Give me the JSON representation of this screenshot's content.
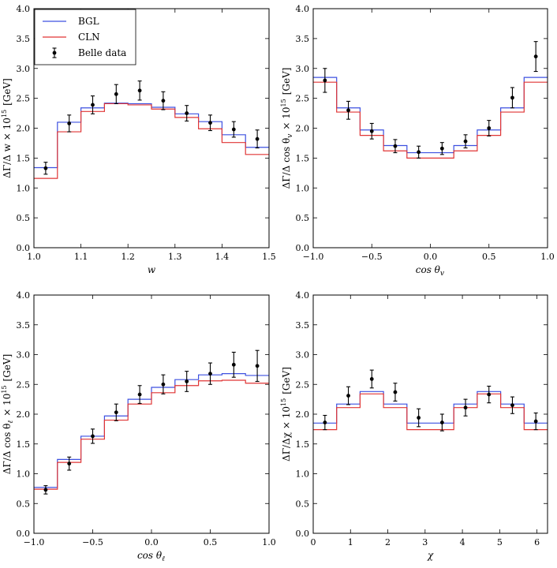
{
  "legend": {
    "items": [
      {
        "label": "BGL",
        "color": "#3d50e0"
      },
      {
        "label": "CLN",
        "color": "#e03535"
      },
      {
        "label": "Belle data",
        "color": "#000000"
      }
    ]
  },
  "chart_data": [
    {
      "type": "step",
      "id": "w",
      "xlabel": "w",
      "ylabel": "ΔΓ/Δ w × 10^15 [GeV]",
      "xlim": [
        1.0,
        1.5
      ],
      "ylim": [
        0.0,
        4.0
      ],
      "xticks": [
        "1.0",
        "1.1",
        "1.2",
        "1.3",
        "1.4",
        "1.5"
      ],
      "xtick_values": [
        1.0,
        1.1,
        1.2,
        1.3,
        1.4,
        1.5
      ],
      "yticks": [
        "0.0",
        "0.5",
        "1.0",
        "1.5",
        "2.0",
        "2.5",
        "3.0",
        "3.5",
        "4.0"
      ],
      "ytick_values": [
        0.0,
        0.5,
        1.0,
        1.5,
        2.0,
        2.5,
        3.0,
        3.5,
        4.0
      ],
      "bin_edges": [
        1.0,
        1.05,
        1.1,
        1.15,
        1.2,
        1.25,
        1.3,
        1.35,
        1.4,
        1.45,
        1.5
      ],
      "series": [
        {
          "name": "BGL",
          "values": [
            1.34,
            2.1,
            2.34,
            2.42,
            2.41,
            2.35,
            2.24,
            2.11,
            1.89,
            1.68
          ]
        },
        {
          "name": "CLN",
          "values": [
            1.16,
            1.94,
            2.28,
            2.41,
            2.39,
            2.32,
            2.18,
            1.99,
            1.76,
            1.56
          ]
        }
      ],
      "data": {
        "name": "Belle data",
        "x": [
          1.025,
          1.075,
          1.125,
          1.175,
          1.225,
          1.275,
          1.325,
          1.375,
          1.425,
          1.475
        ],
        "y": [
          1.33,
          2.08,
          2.39,
          2.57,
          2.63,
          2.46,
          2.25,
          2.09,
          1.98,
          1.82
        ],
        "err": [
          0.1,
          0.14,
          0.15,
          0.16,
          0.16,
          0.15,
          0.13,
          0.13,
          0.13,
          0.15
        ]
      },
      "legend": true
    },
    {
      "type": "step",
      "id": "cos_theta_v",
      "xlabel": "cos θ_v",
      "ylabel": "ΔΓ/Δ cos θ_v × 10^15 [GeV]",
      "xlim": [
        -1.0,
        1.0
      ],
      "ylim": [
        0.0,
        4.0
      ],
      "xticks": [
        "−1.0",
        "−0.5",
        "0.0",
        "0.5",
        "1.0"
      ],
      "xtick_values": [
        -1.0,
        -0.5,
        0.0,
        0.5,
        1.0
      ],
      "yticks": [
        "0.0",
        "0.5",
        "1.0",
        "1.5",
        "2.0",
        "2.5",
        "3.0",
        "3.5",
        "4.0"
      ],
      "ytick_values": [
        0.0,
        0.5,
        1.0,
        1.5,
        2.0,
        2.5,
        3.0,
        3.5,
        4.0
      ],
      "bin_edges": [
        -1.0,
        -0.8,
        -0.6,
        -0.4,
        -0.2,
        0.0,
        0.2,
        0.4,
        0.6,
        0.8,
        1.0
      ],
      "series": [
        {
          "name": "BGL",
          "values": [
            2.85,
            2.34,
            1.97,
            1.71,
            1.59,
            1.59,
            1.71,
            1.97,
            2.34,
            2.85
          ]
        },
        {
          "name": "CLN",
          "values": [
            2.77,
            2.27,
            1.88,
            1.62,
            1.5,
            1.5,
            1.62,
            1.88,
            2.27,
            2.77
          ]
        }
      ],
      "data": {
        "name": "Belle data",
        "x": [
          -0.9,
          -0.7,
          -0.5,
          -0.3,
          -0.1,
          0.1,
          0.3,
          0.5,
          0.7,
          0.9
        ],
        "y": [
          2.8,
          2.3,
          1.95,
          1.7,
          1.6,
          1.66,
          1.78,
          2.0,
          2.51,
          3.2
        ],
        "err": [
          0.2,
          0.15,
          0.13,
          0.11,
          0.1,
          0.1,
          0.11,
          0.13,
          0.17,
          0.25
        ]
      },
      "legend": false
    },
    {
      "type": "step",
      "id": "cos_theta_l",
      "xlabel": "cos θ_ℓ",
      "ylabel": "ΔΓ/Δ cos θ_ℓ × 10^15 [GeV]",
      "xlim": [
        -1.0,
        1.0
      ],
      "ylim": [
        0.0,
        4.0
      ],
      "xticks": [
        "−1.0",
        "−0.5",
        "0.0",
        "0.5",
        "1.0"
      ],
      "xtick_values": [
        -1.0,
        -0.5,
        0.0,
        0.5,
        1.0
      ],
      "yticks": [
        "0.0",
        "0.5",
        "1.0",
        "1.5",
        "2.0",
        "2.5",
        "3.0",
        "3.5",
        "4.0"
      ],
      "ytick_values": [
        0.0,
        0.5,
        1.0,
        1.5,
        2.0,
        2.5,
        3.0,
        3.5,
        4.0
      ],
      "bin_edges": [
        -1.0,
        -0.8,
        -0.6,
        -0.4,
        -0.2,
        0.0,
        0.2,
        0.4,
        0.6,
        0.8,
        1.0
      ],
      "series": [
        {
          "name": "BGL",
          "values": [
            0.77,
            1.24,
            1.63,
            1.97,
            2.25,
            2.45,
            2.58,
            2.66,
            2.68,
            2.65
          ]
        },
        {
          "name": "CLN",
          "values": [
            0.74,
            1.19,
            1.58,
            1.9,
            2.17,
            2.36,
            2.48,
            2.56,
            2.57,
            2.52
          ]
        }
      ],
      "data": {
        "name": "Belle data",
        "x": [
          -0.9,
          -0.7,
          -0.5,
          -0.3,
          -0.1,
          0.1,
          0.3,
          0.5,
          0.7,
          0.9
        ],
        "y": [
          0.73,
          1.17,
          1.63,
          2.03,
          2.33,
          2.5,
          2.55,
          2.68,
          2.83,
          2.81
        ],
        "err": [
          0.07,
          0.11,
          0.12,
          0.14,
          0.15,
          0.16,
          0.17,
          0.18,
          0.21,
          0.26
        ]
      },
      "legend": false
    },
    {
      "type": "step",
      "id": "chi",
      "xlabel": "χ",
      "ylabel": "ΔΓ/Δχ × 10^15 [GeV]",
      "xlim": [
        0.0,
        6.283
      ],
      "ylim": [
        0.0,
        4.0
      ],
      "xticks": [
        "0",
        "1",
        "2",
        "3",
        "4",
        "5",
        "6"
      ],
      "xtick_values": [
        0,
        1,
        2,
        3,
        4,
        5,
        6
      ],
      "yticks": [
        "0.0",
        "0.5",
        "1.0",
        "1.5",
        "2.0",
        "2.5",
        "3.0",
        "3.5",
        "4.0"
      ],
      "ytick_values": [
        0.0,
        0.5,
        1.0,
        1.5,
        2.0,
        2.5,
        3.0,
        3.5,
        4.0
      ],
      "bin_edges": [
        0.0,
        0.6283,
        1.2566,
        1.885,
        2.5133,
        3.1416,
        3.7699,
        4.3982,
        5.0265,
        5.6549,
        6.2832
      ],
      "series": [
        {
          "name": "BGL",
          "values": [
            1.85,
            2.17,
            2.38,
            2.17,
            1.85,
            1.85,
            2.17,
            2.38,
            2.17,
            1.85
          ]
        },
        {
          "name": "CLN",
          "values": [
            1.74,
            2.11,
            2.34,
            2.11,
            1.74,
            1.74,
            2.11,
            2.34,
            2.11,
            1.74
          ]
        }
      ],
      "data": {
        "name": "Belle data",
        "x": [
          0.314,
          0.942,
          1.571,
          2.199,
          2.827,
          3.456,
          4.084,
          4.712,
          5.341,
          5.969
        ],
        "y": [
          1.86,
          2.31,
          2.59,
          2.37,
          1.94,
          1.86,
          2.11,
          2.33,
          2.15,
          1.88
        ],
        "err": [
          0.12,
          0.15,
          0.15,
          0.15,
          0.15,
          0.14,
          0.14,
          0.14,
          0.14,
          0.14
        ]
      },
      "legend": false
    }
  ]
}
